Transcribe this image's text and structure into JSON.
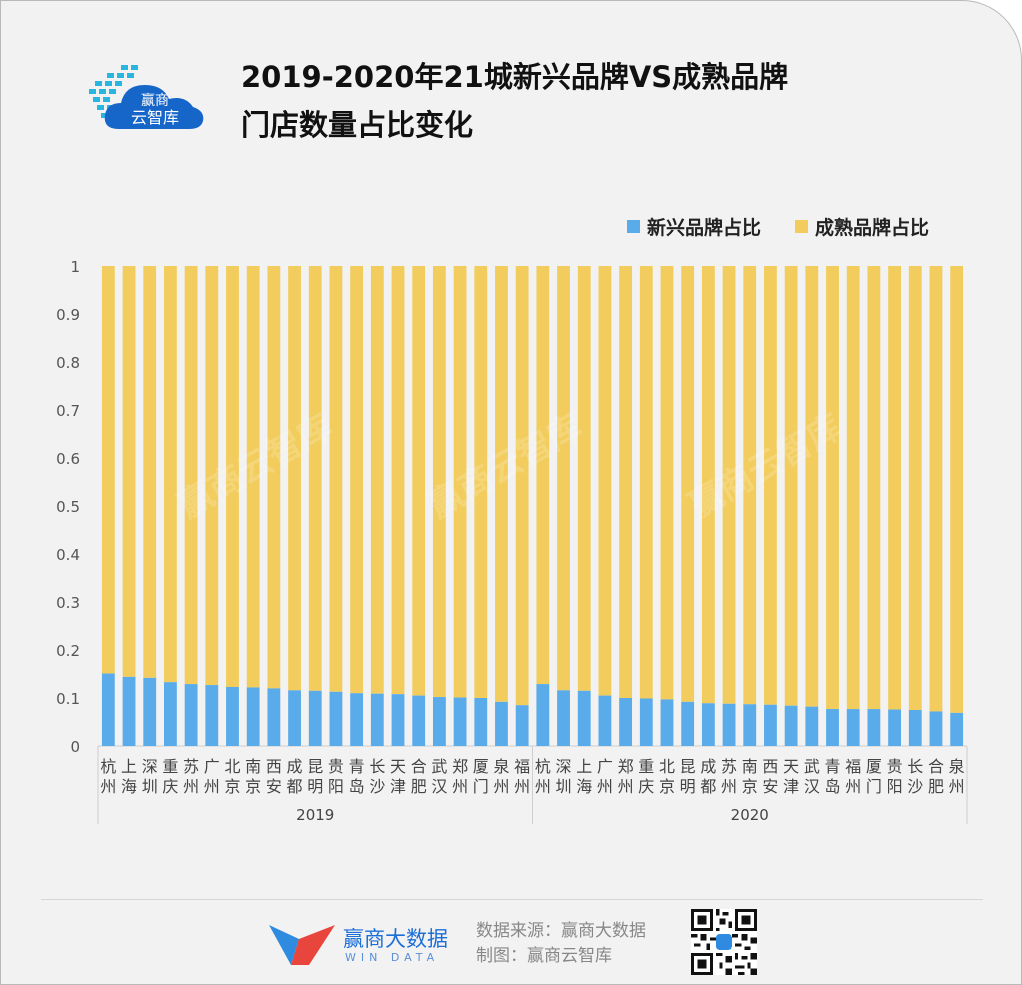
{
  "header": {
    "title_line1": "2019-2020年21城新兴品牌VS成熟品牌",
    "title_line2": "门店数量占比变化",
    "logo_text_top": "赢商",
    "logo_text_bottom": "云智库"
  },
  "colors": {
    "new_brand": "#5aabea",
    "mature_brand": "#f2cd5e",
    "axis_text": "#555555",
    "gridline": "#cfcfcf"
  },
  "chart_data": {
    "type": "bar",
    "stacked": true,
    "ylim": [
      0,
      1
    ],
    "yticks": [
      "0",
      "0.1",
      "0.2",
      "0.3",
      "0.4",
      "0.5",
      "0.6",
      "0.7",
      "0.8",
      "0.9",
      "1"
    ],
    "legend": "top-right",
    "grid": false,
    "groups": [
      {
        "label": "2019",
        "categories": [
          "杭州",
          "上海",
          "深圳",
          "重庆",
          "苏州",
          "广州",
          "北京",
          "南京",
          "西安",
          "成都",
          "昆明",
          "贵阳",
          "青岛",
          "长沙",
          "天津",
          "合肥",
          "武汉",
          "郑州",
          "厦门",
          "泉州",
          "福州"
        ],
        "new_brand": [
          0.151,
          0.144,
          0.142,
          0.133,
          0.129,
          0.127,
          0.123,
          0.122,
          0.12,
          0.116,
          0.115,
          0.113,
          0.11,
          0.109,
          0.108,
          0.105,
          0.102,
          0.101,
          0.1,
          0.092,
          0.085
        ]
      },
      {
        "label": "2020",
        "categories": [
          "杭州",
          "深圳",
          "上海",
          "广州",
          "郑州",
          "重庆",
          "北京",
          "昆明",
          "成都",
          "苏州",
          "南京",
          "西安",
          "天津",
          "武汉",
          "青岛",
          "福州",
          "厦门",
          "贵阳",
          "长沙",
          "合肥",
          "泉州"
        ],
        "new_brand": [
          0.129,
          0.116,
          0.115,
          0.105,
          0.1,
          0.099,
          0.097,
          0.092,
          0.089,
          0.088,
          0.087,
          0.086,
          0.084,
          0.082,
          0.077,
          0.077,
          0.077,
          0.076,
          0.075,
          0.072,
          0.069
        ]
      }
    ],
    "series": [
      {
        "name": "新兴品牌占比",
        "key": "new_brand"
      },
      {
        "name": "成熟品牌占比",
        "key": "mature_brand"
      }
    ]
  },
  "footer": {
    "brand_name": "赢商大数据",
    "brand_sub": "WIN DATA",
    "source_line1": "数据来源：赢商大数据",
    "source_line2": "制图：赢商云智库"
  }
}
